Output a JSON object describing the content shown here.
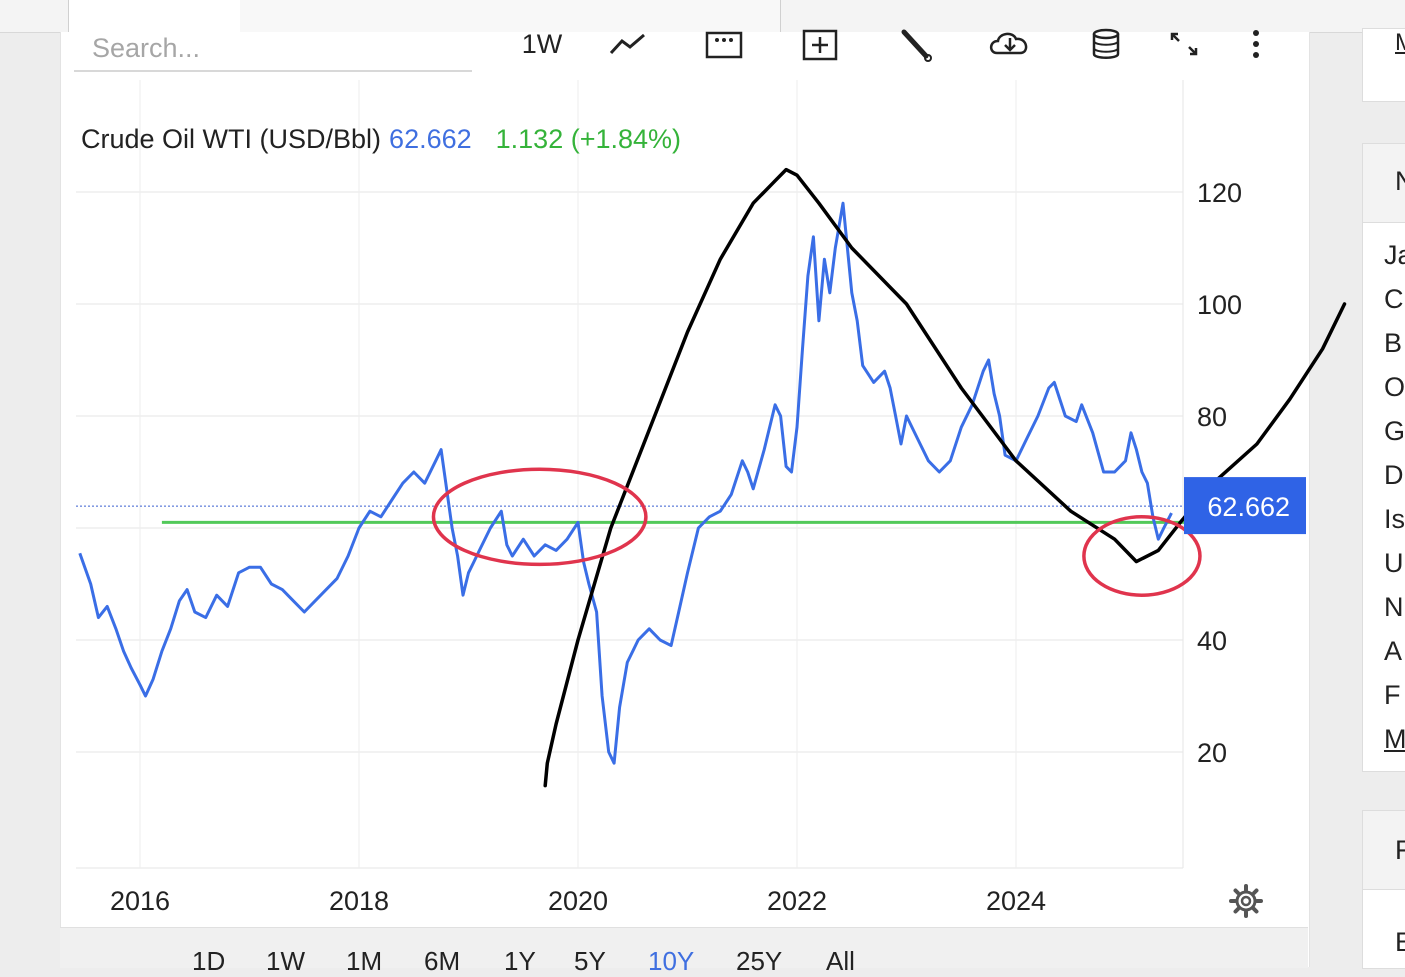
{
  "search": {
    "placeholder": "Search..."
  },
  "toolbar": {
    "interval_label": "1W",
    "icons": [
      "line-chart-icon",
      "dotted-box-icon",
      "add-box-icon",
      "wrench-icon",
      "cloud-download-icon",
      "database-icon",
      "expand-icon",
      "more-vert-icon"
    ]
  },
  "header": {
    "instrument": "Crude Oil WTI (USD/Bbl)",
    "price": "62.662",
    "change": "1.132 (+1.84%)"
  },
  "range_buttons": [
    "1D",
    "1W",
    "1M",
    "6M",
    "1Y",
    "5Y",
    "10Y",
    "25Y",
    "All"
  ],
  "active_range": "10Y",
  "sidebar": {
    "top_link": "M",
    "header": "N",
    "items": [
      "Ja",
      "C",
      "B",
      "O",
      "G",
      "D",
      "Is",
      "U",
      "N",
      "A",
      "F",
      "M"
    ],
    "box2_rows": [
      "F",
      "E"
    ]
  },
  "colors": {
    "price_line": "#3a6ee6",
    "support_line": "#52c95a",
    "ellipse": "#e0344d",
    "annotation": "#000000",
    "price_tag": "#2f63e6"
  },
  "chart_data": {
    "type": "line",
    "title": "Crude Oil WTI (USD/Bbl)",
    "xlabel": "",
    "ylabel": "",
    "x_ticks": [
      "2016",
      "2018",
      "2020",
      "2022",
      "2024"
    ],
    "y_ticks": [
      20,
      40,
      80,
      100,
      120
    ],
    "ylim": [
      0,
      130
    ],
    "xlim": [
      2015.4,
      2025.5
    ],
    "last_price": 62.662,
    "series": [
      {
        "points": [
          [
            2015.45,
            55.5
          ],
          [
            2015.55,
            50
          ],
          [
            2015.62,
            44
          ],
          [
            2015.7,
            46
          ],
          [
            2015.78,
            42
          ],
          [
            2015.85,
            38
          ],
          [
            2015.92,
            35
          ],
          [
            2016.0,
            32
          ],
          [
            2016.05,
            30
          ],
          [
            2016.12,
            33
          ],
          [
            2016.2,
            38
          ],
          [
            2016.28,
            42
          ],
          [
            2016.36,
            47
          ],
          [
            2016.43,
            49
          ],
          [
            2016.5,
            45
          ],
          [
            2016.6,
            44
          ],
          [
            2016.7,
            48
          ],
          [
            2016.8,
            46
          ],
          [
            2016.9,
            52
          ],
          [
            2017.0,
            53
          ],
          [
            2017.1,
            53
          ],
          [
            2017.2,
            50
          ],
          [
            2017.3,
            49
          ],
          [
            2017.4,
            47
          ],
          [
            2017.5,
            45
          ],
          [
            2017.6,
            47
          ],
          [
            2017.7,
            49
          ],
          [
            2017.8,
            51
          ],
          [
            2017.9,
            55
          ],
          [
            2018.0,
            60
          ],
          [
            2018.1,
            63
          ],
          [
            2018.2,
            62
          ],
          [
            2018.3,
            65
          ],
          [
            2018.4,
            68
          ],
          [
            2018.5,
            70
          ],
          [
            2018.6,
            68
          ],
          [
            2018.7,
            72
          ],
          [
            2018.75,
            74
          ],
          [
            2018.8,
            67
          ],
          [
            2018.85,
            60
          ],
          [
            2018.9,
            55
          ],
          [
            2018.95,
            48
          ],
          [
            2019.0,
            52
          ],
          [
            2019.05,
            54
          ],
          [
            2019.1,
            56
          ],
          [
            2019.2,
            60
          ],
          [
            2019.3,
            63
          ],
          [
            2019.35,
            57
          ],
          [
            2019.4,
            55
          ],
          [
            2019.5,
            58
          ],
          [
            2019.6,
            55
          ],
          [
            2019.7,
            57
          ],
          [
            2019.8,
            56
          ],
          [
            2019.9,
            58
          ],
          [
            2020.0,
            61
          ],
          [
            2020.05,
            54
          ],
          [
            2020.1,
            50
          ],
          [
            2020.17,
            45
          ],
          [
            2020.22,
            30
          ],
          [
            2020.28,
            20
          ],
          [
            2020.33,
            18
          ],
          [
            2020.38,
            28
          ],
          [
            2020.45,
            36
          ],
          [
            2020.55,
            40
          ],
          [
            2020.65,
            42
          ],
          [
            2020.75,
            40
          ],
          [
            2020.85,
            39
          ],
          [
            2020.92,
            45
          ],
          [
            2021.0,
            52
          ],
          [
            2021.1,
            60
          ],
          [
            2021.2,
            62
          ],
          [
            2021.3,
            63
          ],
          [
            2021.4,
            66
          ],
          [
            2021.5,
            72
          ],
          [
            2021.55,
            70
          ],
          [
            2021.6,
            67
          ],
          [
            2021.7,
            74
          ],
          [
            2021.8,
            82
          ],
          [
            2021.85,
            80
          ],
          [
            2021.9,
            71
          ],
          [
            2021.95,
            70
          ],
          [
            2022.0,
            78
          ],
          [
            2022.05,
            92
          ],
          [
            2022.1,
            105
          ],
          [
            2022.15,
            112
          ],
          [
            2022.2,
            97
          ],
          [
            2022.25,
            108
          ],
          [
            2022.3,
            102
          ],
          [
            2022.35,
            110
          ],
          [
            2022.42,
            118
          ],
          [
            2022.5,
            102
          ],
          [
            2022.55,
            97
          ],
          [
            2022.6,
            89
          ],
          [
            2022.7,
            86
          ],
          [
            2022.8,
            88
          ],
          [
            2022.85,
            85
          ],
          [
            2022.9,
            80
          ],
          [
            2022.95,
            75
          ],
          [
            2023.0,
            80
          ],
          [
            2023.1,
            76
          ],
          [
            2023.2,
            72
          ],
          [
            2023.3,
            70
          ],
          [
            2023.4,
            72
          ],
          [
            2023.5,
            78
          ],
          [
            2023.6,
            82
          ],
          [
            2023.7,
            88
          ],
          [
            2023.75,
            90
          ],
          [
            2023.8,
            84
          ],
          [
            2023.85,
            80
          ],
          [
            2023.9,
            73
          ],
          [
            2024.0,
            72
          ],
          [
            2024.1,
            76
          ],
          [
            2024.2,
            80
          ],
          [
            2024.3,
            85
          ],
          [
            2024.35,
            86
          ],
          [
            2024.45,
            80
          ],
          [
            2024.55,
            79
          ],
          [
            2024.6,
            82
          ],
          [
            2024.7,
            77
          ],
          [
            2024.8,
            70
          ],
          [
            2024.9,
            70
          ],
          [
            2025.0,
            72
          ],
          [
            2025.05,
            77
          ],
          [
            2025.1,
            74
          ],
          [
            2025.15,
            70
          ],
          [
            2025.2,
            68
          ],
          [
            2025.25,
            62
          ],
          [
            2025.3,
            58
          ],
          [
            2025.35,
            60
          ],
          [
            2025.42,
            62.662
          ]
        ]
      }
    ],
    "annotations": {
      "support_level": 61,
      "support_start_x": 2016.2,
      "drawn_curve": [
        [
          2019.7,
          14
        ],
        [
          2019.72,
          18
        ],
        [
          2019.8,
          25
        ],
        [
          2020.0,
          40
        ],
        [
          2020.3,
          60
        ],
        [
          2020.6,
          75
        ],
        [
          2021.0,
          95
        ],
        [
          2021.3,
          108
        ],
        [
          2021.6,
          118
        ],
        [
          2021.8,
          122
        ],
        [
          2021.9,
          124
        ],
        [
          2022.0,
          123
        ],
        [
          2022.2,
          118
        ],
        [
          2022.5,
          110
        ],
        [
          2023.0,
          100
        ],
        [
          2023.5,
          85
        ],
        [
          2024.0,
          72
        ],
        [
          2024.5,
          63
        ],
        [
          2024.9,
          58
        ],
        [
          2025.1,
          54
        ],
        [
          2025.3,
          56
        ],
        [
          2025.5,
          61
        ],
        [
          2025.8,
          68
        ],
        [
          2026.2,
          75
        ],
        [
          2026.5,
          83
        ],
        [
          2026.8,
          92
        ],
        [
          2027.0,
          100
        ]
      ],
      "ellipses": [
        {
          "cx": 2019.65,
          "cy": 62,
          "rx": 0.97,
          "ry": 8.5
        },
        {
          "cx": 2025.15,
          "cy": 55,
          "rx": 0.53,
          "ry": 7
        }
      ]
    }
  }
}
